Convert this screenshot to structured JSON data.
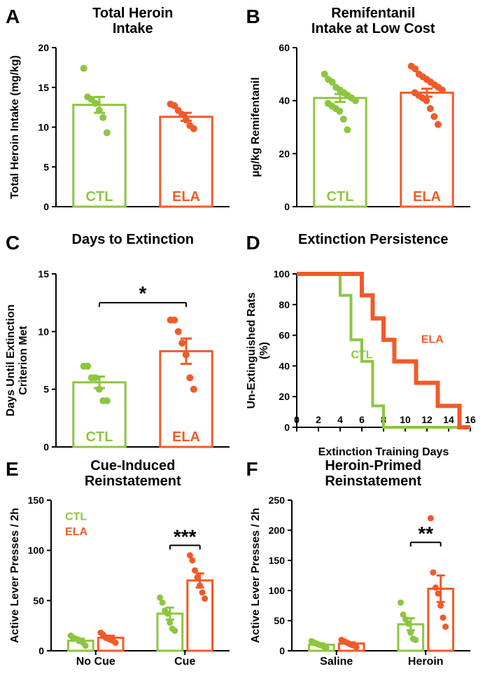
{
  "colors": {
    "ctl": "#8cc63f",
    "ela": "#f15a29",
    "black": "#000000"
  },
  "panelA": {
    "letter": "A",
    "title1": "Total Heroin",
    "title2": "Intake",
    "ylabel": "Total Heroin Intake (mg/kg)",
    "ylim": [
      0,
      20
    ],
    "ytick_step": 5,
    "bars": [
      {
        "label": "CTL",
        "mean": 12.8,
        "err": 1.0,
        "color_ref": "ctl"
      },
      {
        "label": "ELA",
        "mean": 11.3,
        "err": 0.5,
        "color_ref": "ela"
      }
    ],
    "scatter": {
      "ctl": [
        17.4,
        13.8,
        13.5,
        13.0,
        12.1,
        11.2,
        9.3
      ],
      "ela": [
        12.9,
        12.7,
        12.1,
        11.6,
        10.9,
        10.2,
        9.8
      ]
    }
  },
  "panelB": {
    "letter": "B",
    "title1": "Remifentanil",
    "title2": "Intake at Low Cost",
    "ylabel": "µg/kg Remifentanil",
    "ylim": [
      0,
      60
    ],
    "ytick_step": 20,
    "bars": [
      {
        "label": "CTL",
        "mean": 41,
        "err": 1.5,
        "color_ref": "ctl"
      },
      {
        "label": "ELA",
        "mean": 43,
        "err": 1.5,
        "color_ref": "ela"
      }
    ],
    "scatter": {
      "ctl": [
        50,
        48,
        47,
        45,
        44,
        43,
        42,
        41,
        40,
        39,
        38,
        37,
        36,
        33,
        29
      ],
      "ela": [
        53,
        52,
        50,
        49,
        48,
        47,
        46,
        45,
        44,
        43,
        42,
        41,
        40,
        37,
        34,
        31
      ]
    }
  },
  "panelC": {
    "letter": "C",
    "title": "Days to Extinction",
    "ylabel1": "Days Until Extinction",
    "ylabel2": "Criterion Met",
    "ylim": [
      0,
      15
    ],
    "ytick_step": 5,
    "sig": "*",
    "bars": [
      {
        "label": "CTL",
        "mean": 5.6,
        "err": 0.5,
        "color_ref": "ctl"
      },
      {
        "label": "ELA",
        "mean": 8.3,
        "err": 1.1,
        "color_ref": "ela"
      }
    ],
    "scatter": {
      "ctl": [
        7,
        7,
        6,
        6,
        5,
        4,
        4
      ],
      "ela": [
        11,
        11,
        10,
        9,
        8,
        6,
        5
      ]
    }
  },
  "panelD": {
    "letter": "D",
    "title": "Extinction Persistence",
    "ylabel1": "Un-Extinguished Rats",
    "ylabel2": "(%)",
    "xlabel": "Extinction Training Days",
    "ylim": [
      0,
      100
    ],
    "ytick_step": 20,
    "xlim": [
      0,
      16
    ],
    "xtick_step": 2,
    "xticks_label": [
      "0",
      "2",
      "4",
      "6",
      "8",
      "10",
      "12",
      "14",
      "16"
    ],
    "steps": {
      "ctl": [
        [
          0,
          100
        ],
        [
          4,
          100
        ],
        [
          4,
          86
        ],
        [
          5,
          86
        ],
        [
          5,
          57
        ],
        [
          6,
          57
        ],
        [
          6,
          43
        ],
        [
          7,
          43
        ],
        [
          7,
          14
        ],
        [
          8,
          14
        ],
        [
          8,
          0
        ],
        [
          16,
          0
        ]
      ],
      "ela": [
        [
          0,
          100
        ],
        [
          6,
          100
        ],
        [
          6,
          86
        ],
        [
          7,
          86
        ],
        [
          7,
          71
        ],
        [
          8,
          71
        ],
        [
          8,
          57
        ],
        [
          9,
          57
        ],
        [
          9,
          43
        ],
        [
          11,
          43
        ],
        [
          11,
          29
        ],
        [
          13,
          29
        ],
        [
          13,
          14
        ],
        [
          15,
          14
        ],
        [
          15,
          0
        ],
        [
          16,
          0
        ]
      ]
    },
    "legend_ctl": "CTL",
    "legend_ela": "ELA"
  },
  "panelE": {
    "letter": "E",
    "title1": "Cue-Induced",
    "title2": "Reinstatement",
    "ylabel": "Active Lever Presses / 2h",
    "ylim": [
      0,
      150
    ],
    "ytick_step": 50,
    "xcats": [
      "No Cue",
      "Cue"
    ],
    "sig": "***",
    "legend_ctl": "CTL",
    "legend_ela": "ELA",
    "groups": [
      {
        "ctl_mean": 10,
        "ctl_err": 2,
        "ela_mean": 13,
        "ela_err": 2
      },
      {
        "ctl_mean": 37,
        "ctl_err": 6,
        "ela_mean": 70,
        "ela_err": 7
      }
    ],
    "scatter": {
      "nocue_ctl": [
        15,
        13,
        12,
        11,
        10,
        8,
        5
      ],
      "nocue_ela": [
        18,
        16,
        13,
        12,
        11,
        10,
        8
      ],
      "cue_ctl": [
        53,
        48,
        40,
        37,
        28,
        22,
        20
      ],
      "cue_ela": [
        95,
        90,
        80,
        73,
        65,
        58,
        52
      ]
    }
  },
  "panelF": {
    "letter": "F",
    "title1": "Heroin-Primed",
    "title2": "Reinstatement",
    "ylabel": "Active Lever Presses / 2h",
    "ylim": [
      0,
      250
    ],
    "ytick_step": 50,
    "xcats": [
      "Saline",
      "Heroin"
    ],
    "sig": "**",
    "groups": [
      {
        "ctl_mean": 10,
        "ctl_err": 2,
        "ela_mean": 12,
        "ela_err": 2
      },
      {
        "ctl_mean": 44,
        "ctl_err": 10,
        "ela_mean": 103,
        "ela_err": 22
      }
    ],
    "scatter": {
      "sal_ctl": [
        16,
        14,
        12,
        10,
        9,
        7,
        5
      ],
      "sal_ela": [
        18,
        16,
        14,
        12,
        10,
        9,
        6
      ],
      "her_ctl": [
        80,
        60,
        52,
        45,
        30,
        20,
        18
      ],
      "her_ela": [
        220,
        130,
        105,
        95,
        75,
        55,
        40
      ]
    }
  }
}
